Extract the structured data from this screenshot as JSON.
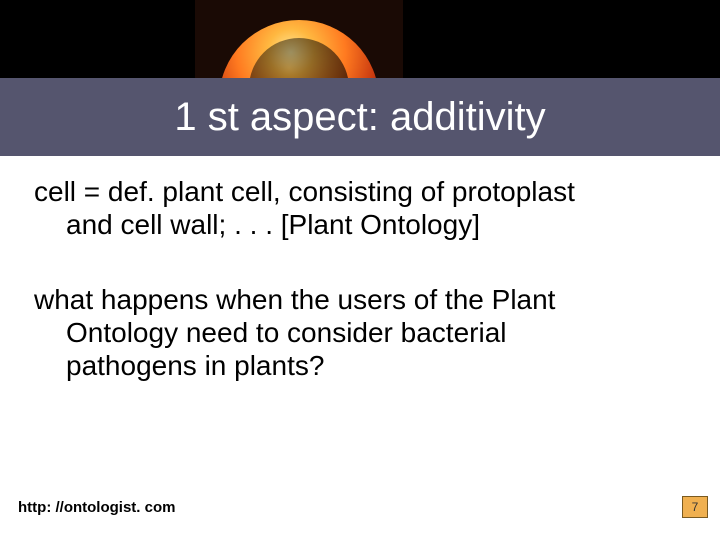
{
  "title": "1 st aspect: additivity",
  "para1_line1": "cell = def. plant cell, consisting of protoplast",
  "para1_line2": "and cell wall; . . . [Plant Ontology]",
  "para2_line1": "what happens when the users of the Plant",
  "para2_line2": "Ontology need to consider bacterial",
  "para2_line3": "pathogens in plants?",
  "footer_url": "http: //ontologist. com",
  "page_number": "7",
  "colors": {
    "title_band_bg": "#55556e",
    "title_text": "#ffffff",
    "body_text": "#000000",
    "page_box_bg": "#f0b050",
    "page_box_border": "#7a5a20",
    "top_bg": "#000000"
  },
  "typography": {
    "title_fontsize": 40,
    "body_fontsize": 28,
    "footer_fontsize": 15,
    "page_num_fontsize": 12,
    "font_family": "Arial"
  },
  "layout": {
    "slide_width": 720,
    "slide_height": 540,
    "top_black_height": 78,
    "title_band_height": 78
  }
}
